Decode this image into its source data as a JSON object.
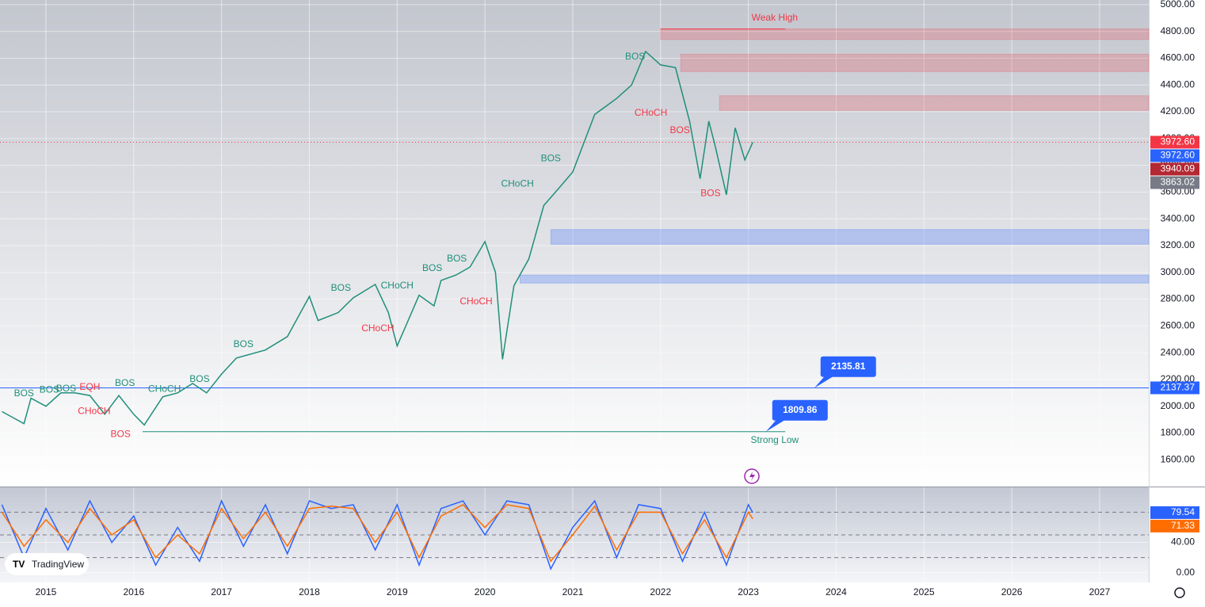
{
  "chart_data": [
    {
      "type": "line",
      "xlim": [
        2014.477,
        2027.56
      ],
      "ylim": [
        1400,
        5035
      ],
      "yticks": [
        {
          "value": 1600,
          "label": "1600.00"
        },
        {
          "value": 1800,
          "label": "1800.00"
        },
        {
          "value": 2000,
          "label": "2000.00"
        },
        {
          "value": 2200,
          "label": "2200.00"
        },
        {
          "value": 2400,
          "label": "2400.00"
        },
        {
          "value": 2600,
          "label": "2600.00"
        },
        {
          "value": 2800,
          "label": "2800.00"
        },
        {
          "value": 3000,
          "label": "3000.00"
        },
        {
          "value": 3200,
          "label": "3200.00"
        },
        {
          "value": 3400,
          "label": "3400.00"
        },
        {
          "value": 3600,
          "label": "3600.00"
        },
        {
          "value": 3800,
          "label": "3800.00"
        },
        {
          "value": 4000,
          "label": "4000.00"
        },
        {
          "value": 4200,
          "label": "4200.00"
        },
        {
          "value": 4400,
          "label": "4400.00"
        },
        {
          "value": 4600,
          "label": "4600.00"
        },
        {
          "value": 4800,
          "label": "4800.00"
        },
        {
          "value": 5000,
          "label": "5000.00"
        }
      ],
      "series": [
        {
          "color": "#1f8f7a",
          "x": [
            2014.5,
            2014.75,
            2014.83,
            2015.0,
            2015.17,
            2015.33,
            2015.5,
            2015.67,
            2015.83,
            2016.0,
            2016.12,
            2016.33,
            2016.5,
            2016.67,
            2016.83,
            2017.0,
            2017.17,
            2017.5,
            2017.75,
            2018.0,
            2018.1,
            2018.33,
            2018.5,
            2018.75,
            2018.9,
            2019.0,
            2019.25,
            2019.42,
            2019.5,
            2019.67,
            2019.83,
            2020.0,
            2020.12,
            2020.2,
            2020.33,
            2020.5,
            2020.67,
            2020.83,
            2021.0,
            2021.25,
            2021.5,
            2021.67,
            2021.83,
            2022.0,
            2022.17,
            2022.33,
            2022.45,
            2022.55,
            2022.62,
            2022.75,
            2022.85,
            2022.96,
            2023.05
          ],
          "values": [
            1960,
            1870,
            2060,
            2000,
            2100,
            2100,
            2080,
            1940,
            2080,
            1940,
            1860,
            2070,
            2100,
            2170,
            2100,
            2240,
            2360,
            2420,
            2520,
            2820,
            2640,
            2700,
            2810,
            2910,
            2700,
            2450,
            2830,
            2750,
            2940,
            2980,
            3040,
            3230,
            3000,
            2350,
            2900,
            3100,
            3500,
            3620,
            3750,
            4180,
            4300,
            4400,
            4650,
            4550,
            4530,
            4130,
            3700,
            4130,
            3950,
            3580,
            4080,
            3840,
            3972.6
          ]
        }
      ],
      "zones": [
        {
          "y0": 4740,
          "y1": 4820,
          "x0": 2022.0,
          "color": "rgba(242,54,69,0.22)"
        },
        {
          "y0": 4500,
          "y1": 4630,
          "x0": 2022.23,
          "color": "rgba(242,54,69,0.22)"
        },
        {
          "y0": 4210,
          "y1": 4320,
          "x0": 2022.67,
          "color": "rgba(242,54,69,0.22)"
        },
        {
          "y0": 3210,
          "y1": 3320,
          "x0": 2020.75,
          "color": "rgba(41,98,255,0.25)"
        },
        {
          "y0": 2920,
          "y1": 2980,
          "x0": 2020.4,
          "color": "rgba(41,98,255,0.25)"
        }
      ],
      "levels": [
        {
          "value": 4818,
          "x0": 2022.0,
          "x1": 2023.42,
          "color": "#f23645"
        },
        {
          "value": 2137.37,
          "x0": 2014.477,
          "x1": 2027.56,
          "color": "#2962ff"
        },
        {
          "value": 1809.86,
          "x0": 2016.1,
          "x1": 2023.42,
          "color": "#1f8f7a"
        },
        {
          "value": 3972.6,
          "x0": 2014.477,
          "x1": 2027.56,
          "color": "#f23645"
        }
      ],
      "callouts": [
        {
          "value": 2135.81,
          "x": 2023.75
        },
        {
          "value": 1809.86,
          "x": 2023.2
        }
      ],
      "annotations": [
        {
          "text": "Weak High",
          "x": 2023.3,
          "y": 4900,
          "color": "#f23645"
        },
        {
          "text": "Strong Low",
          "x": 2023.3,
          "y": 1745,
          "color": "#1f8f7a"
        },
        {
          "text": "BOS",
          "x": 2014.75,
          "y": 2095,
          "color": "#1f8f7a"
        },
        {
          "text": "BOS",
          "x": 2015.04,
          "y": 2120,
          "color": "#1f8f7a"
        },
        {
          "text": "BOS",
          "x": 2015.23,
          "y": 2130,
          "color": "#1f8f7a"
        },
        {
          "text": "EQH",
          "x": 2015.5,
          "y": 2140,
          "color": "#f23645"
        },
        {
          "text": "BOS",
          "x": 2015.9,
          "y": 2170,
          "color": "#1f8f7a"
        },
        {
          "text": "CHoCH",
          "x": 2015.55,
          "y": 1960,
          "color": "#f23645"
        },
        {
          "text": "BOS",
          "x": 2015.85,
          "y": 1790,
          "color": "#f23645"
        },
        {
          "text": "CHoCH",
          "x": 2016.35,
          "y": 2125,
          "color": "#1f8f7a"
        },
        {
          "text": "BOS",
          "x": 2016.75,
          "y": 2200,
          "color": "#1f8f7a"
        },
        {
          "text": "BOS",
          "x": 2017.25,
          "y": 2460,
          "color": "#1f8f7a"
        },
        {
          "text": "BOS",
          "x": 2018.36,
          "y": 2880,
          "color": "#1f8f7a"
        },
        {
          "text": "CHoCH",
          "x": 2019.0,
          "y": 2900,
          "color": "#1f8f7a"
        },
        {
          "text": "CHoCH",
          "x": 2018.78,
          "y": 2580,
          "color": "#f23645"
        },
        {
          "text": "BOS",
          "x": 2019.4,
          "y": 3030,
          "color": "#1f8f7a"
        },
        {
          "text": "BOS",
          "x": 2019.68,
          "y": 3100,
          "color": "#1f8f7a"
        },
        {
          "text": "CHoCH",
          "x": 2019.9,
          "y": 2780,
          "color": "#f23645"
        },
        {
          "text": "CHoCH",
          "x": 2020.37,
          "y": 3660,
          "color": "#1f8f7a"
        },
        {
          "text": "BOS",
          "x": 2020.75,
          "y": 3850,
          "color": "#1f8f7a"
        },
        {
          "text": "BOS",
          "x": 2021.71,
          "y": 4610,
          "color": "#1f8f7a"
        },
        {
          "text": "CHoCH",
          "x": 2021.89,
          "y": 4190,
          "color": "#f23645"
        },
        {
          "text": "BOS",
          "x": 2022.22,
          "y": 4060,
          "color": "#f23645"
        },
        {
          "text": "BOS",
          "x": 2022.57,
          "y": 3590,
          "color": "#f23645"
        }
      ],
      "price_tags": [
        {
          "value": 3972.6,
          "label": "3972.60",
          "color": "#f23645"
        },
        {
          "value": 3972.6,
          "label": "3972.60",
          "color": "#2962ff"
        },
        {
          "value": 3940.09,
          "label": "3940.09",
          "color": "#b22833"
        },
        {
          "value": 3863.02,
          "label": "3863.02",
          "color": "#787b86"
        },
        {
          "value": 2137.37,
          "label": "2137.37",
          "color": "#2962ff"
        }
      ]
    },
    {
      "type": "line",
      "xlim": [
        2014.477,
        2027.56
      ],
      "ylim": [
        -13,
        113
      ],
      "xticks": [
        2015,
        2016,
        2017,
        2018,
        2019,
        2020,
        2021,
        2022,
        2023,
        2024,
        2025,
        2026,
        2027
      ],
      "yticks": [
        {
          "value": 0,
          "label": "0.00"
        },
        {
          "value": 40,
          "label": "40.00"
        }
      ],
      "levels": [
        20,
        50,
        80
      ],
      "x": [
        2014.5,
        2014.75,
        2015.0,
        2015.25,
        2015.5,
        2015.75,
        2016.0,
        2016.25,
        2016.5,
        2016.75,
        2017.0,
        2017.25,
        2017.5,
        2017.75,
        2018.0,
        2018.25,
        2018.5,
        2018.75,
        2019.0,
        2019.25,
        2019.5,
        2019.75,
        2020.0,
        2020.25,
        2020.5,
        2020.75,
        2021.0,
        2021.25,
        2021.5,
        2021.75,
        2022.0,
        2022.25,
        2022.5,
        2022.75,
        2023.0,
        2023.05
      ],
      "series": [
        {
          "color": "#2962ff",
          "values": [
            90,
            20,
            85,
            30,
            95,
            40,
            75,
            10,
            60,
            15,
            95,
            35,
            90,
            25,
            95,
            85,
            90,
            30,
            90,
            10,
            85,
            95,
            50,
            95,
            90,
            5,
            60,
            95,
            20,
            90,
            85,
            15,
            80,
            10,
            90,
            79.54
          ]
        },
        {
          "color": "#ff6d00",
          "values": [
            80,
            35,
            70,
            40,
            85,
            50,
            70,
            20,
            50,
            25,
            85,
            45,
            80,
            35,
            85,
            88,
            85,
            40,
            80,
            20,
            75,
            90,
            60,
            90,
            85,
            15,
            50,
            88,
            30,
            80,
            80,
            25,
            70,
            20,
            80,
            71.33
          ]
        }
      ],
      "price_tags": [
        {
          "value": 79.54,
          "label": "79.54",
          "color": "#2962ff"
        },
        {
          "value": 71.33,
          "label": "71.33",
          "color": "#ff6d00"
        }
      ]
    }
  ],
  "logo": "TradingView"
}
